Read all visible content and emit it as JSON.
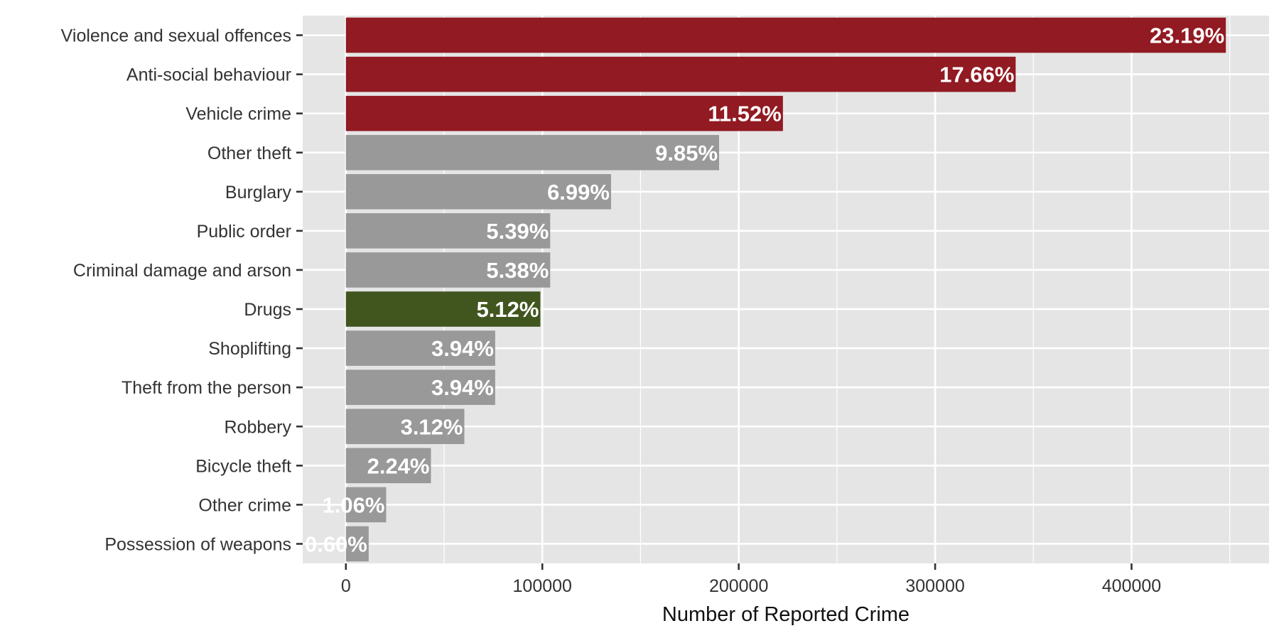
{
  "chart_data": {
    "type": "bar",
    "orientation": "horizontal",
    "title": "",
    "xlabel": "Number of Reported Crime",
    "ylabel": "",
    "xlim": [
      -22000,
      470000
    ],
    "x_ticks": [
      0,
      100000,
      200000,
      300000,
      400000
    ],
    "x_tick_labels": [
      "0",
      "100000",
      "200000",
      "300000",
      "400000"
    ],
    "grid": true,
    "legend": "none",
    "colors": {
      "panel": "#e5e5e5",
      "grid": "#ffffff",
      "highlight": "#921a22",
      "neutral": "#999999",
      "accent": "#41561f",
      "label_text": "#ffffff",
      "axis_text": "#333333",
      "title_text": "#111111"
    },
    "categories": [
      "Violence and sexual offences",
      "Anti-social behaviour",
      "Vehicle crime",
      "Other theft",
      "Burglary",
      "Public order",
      "Criminal damage and arson",
      "Drugs",
      "Shoplifting",
      "Theft from the person",
      "Robbery",
      "Bicycle theft",
      "Other crime",
      "Possession of weapons"
    ],
    "values": [
      448000,
      341000,
      222500,
      190000,
      135000,
      104000,
      104000,
      99000,
      76000,
      76000,
      60300,
      43300,
      20500,
      11600
    ],
    "labels": [
      "23.19%",
      "17.66%",
      "11.52%",
      "9.85%",
      "6.99%",
      "5.39%",
      "5.38%",
      "5.12%",
      "3.94%",
      "3.94%",
      "3.12%",
      "2.24%",
      "1.06%",
      "0.60%"
    ],
    "bar_color_keys": [
      "highlight",
      "highlight",
      "highlight",
      "neutral",
      "neutral",
      "neutral",
      "neutral",
      "accent",
      "neutral",
      "neutral",
      "neutral",
      "neutral",
      "neutral",
      "neutral"
    ]
  }
}
